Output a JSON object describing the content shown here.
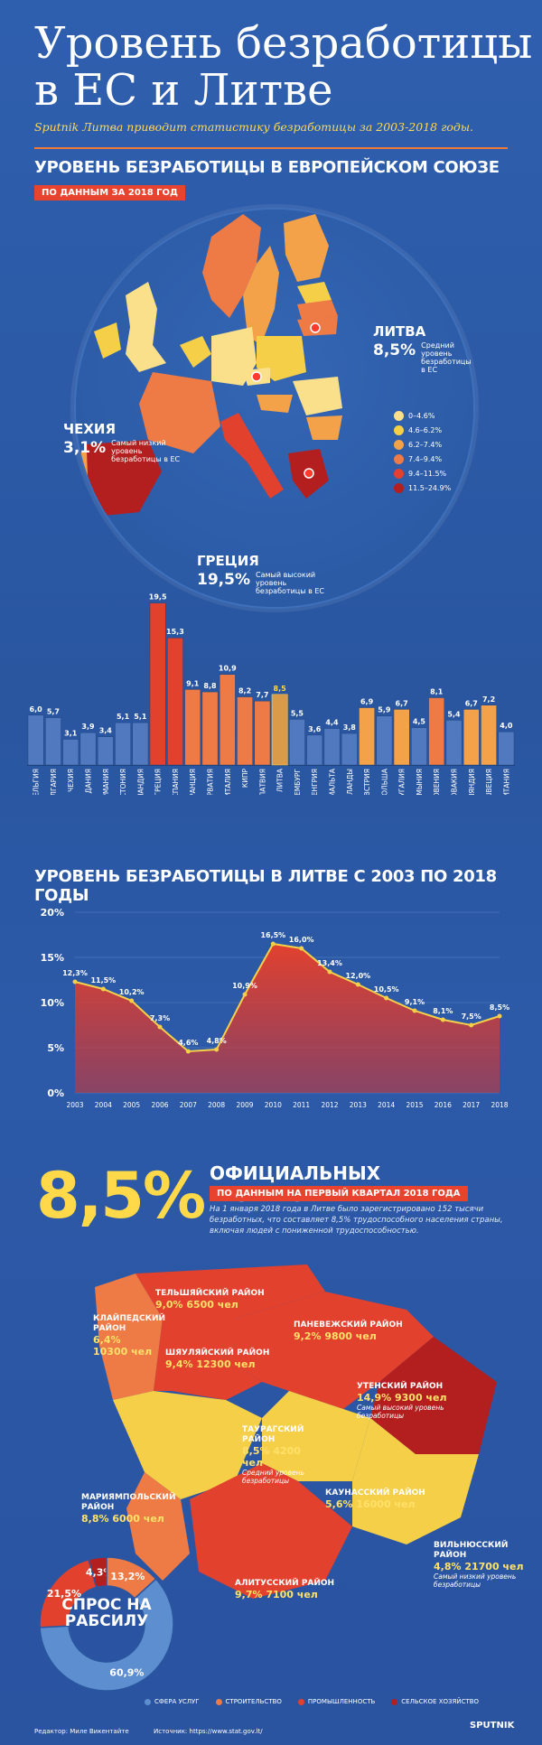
{
  "header": {
    "title": "Уровень безработицы\nв ЕС и Литве",
    "subtitle": "Sputnik Литва приводит статистику безработицы за 2003-2018 годы."
  },
  "eu_section": {
    "heading": "УРОВЕНЬ БЕЗРАБОТИЦЫ В ЕВРОПЕЙСКОМ СОЮЗЕ",
    "tag": "ПО ДАННЫМ ЗА 2018 ГОД",
    "callouts": {
      "lithuania": {
        "name": "ЛИТВА",
        "value": "8,5%",
        "note": "Средний уровень безработицы в ЕС"
      },
      "czechia": {
        "name": "ЧЕХИЯ",
        "value": "3,1%",
        "note": "Самый низкий уровень безработицы в ЕС"
      },
      "greece": {
        "name": "ГРЕЦИЯ",
        "value": "19,5%",
        "note": "Самый высокий уровень безработицы в ЕС"
      }
    },
    "legend": [
      {
        "label": "0–4.6%",
        "color": "#fbe08c"
      },
      {
        "label": "4.6–6.2%",
        "color": "#f6cf48"
      },
      {
        "label": "6.2–7.4%",
        "color": "#f3a24a"
      },
      {
        "label": "7.4–9.4%",
        "color": "#ee7a45"
      },
      {
        "label": "9.4–11.5%",
        "color": "#e2412e"
      },
      {
        "label": "11.5–24.9%",
        "color": "#b31f1f"
      }
    ]
  },
  "chart_data": [
    {
      "type": "bar",
      "categories": [
        "БЕЛЬГИЯ",
        "БОЛГАРИЯ",
        "ЧЕХИЯ",
        "ДАНИЯ",
        "ГЕРМАНИЯ",
        "ЭСТОНИЯ",
        "ИРЛАНДИЯ",
        "ГРЕЦИЯ",
        "ИСПАНИЯ",
        "ФРАНЦИЯ",
        "ХОРВАТИЯ",
        "ИТАЛИЯ",
        "КИПР",
        "ЛАТВИЯ",
        "ЛИТВА",
        "ЛЮКСЕМБУРГ",
        "ВЕНГРИЯ",
        "МАЛЬТА",
        "НИДЕРЛАНДЫ",
        "АВСТРИЯ",
        "ПОЛЬША",
        "ПОРТУГАЛИЯ",
        "РУМЫНИЯ",
        "СЛОВЕНИЯ",
        "СЛОВАКИЯ",
        "ФИНЛЯНДИЯ",
        "ШВЕЦИЯ",
        "ВЕЛИКОБРИТАНИЯ"
      ],
      "values": [
        6.0,
        5.7,
        3.1,
        3.9,
        3.4,
        5.1,
        5.1,
        19.5,
        15.3,
        9.1,
        8.8,
        10.9,
        8.2,
        7.7,
        8.5,
        5.5,
        3.6,
        4.4,
        3.8,
        6.9,
        5.9,
        6.7,
        4.5,
        8.1,
        5.4,
        6.7,
        7.2,
        4.0
      ],
      "value_labels": [
        "6,0",
        "5,7",
        "3,1",
        "3,9",
        "3,4",
        "5,1",
        "5,1",
        "19,5",
        "15,3",
        "9,1",
        "8,8",
        "10,9",
        "8,2",
        "7,7",
        "8,5",
        "5,5",
        "3,6",
        "4,4",
        "3,8",
        "6,9",
        "5,9",
        "6,7",
        "4,5",
        "8,1",
        "5,4",
        "6,7",
        "7,2",
        "4,0"
      ],
      "highlight": "ЛИТВА"
    },
    {
      "type": "area",
      "title": "УРОВЕНЬ БЕЗРАБОТИЦЫ В ЛИТВЕ С 2003 ПО 2018 ГОДЫ",
      "x": [
        "2003",
        "2004",
        "2005",
        "2006",
        "2007",
        "2008",
        "2009",
        "2010",
        "2011",
        "2012",
        "2013",
        "2014",
        "2015",
        "2016",
        "2017",
        "2018"
      ],
      "values": [
        12.3,
        11.5,
        10.2,
        7.3,
        4.6,
        4.8,
        10.9,
        16.5,
        16.0,
        13.4,
        12.0,
        10.5,
        9.1,
        8.1,
        7.5,
        8.5
      ],
      "value_labels": [
        "12,3%",
        "11,5%",
        "10,2%",
        "7,3%",
        "4,6%",
        "4,8%",
        "10,9%",
        "16,5%",
        "16,0%",
        "13,4%",
        "12,0%",
        "10,5%",
        "9,1%",
        "8,1%",
        "7,5%",
        "8,5%"
      ],
      "yticks": [
        "0%",
        "5%",
        "10%",
        "15%",
        "20%"
      ],
      "ylim": [
        0,
        20
      ]
    },
    {
      "type": "pie",
      "title": "СПРОС НА РАБСИЛУ",
      "series": [
        {
          "name": "СФЕРА УСЛУГ",
          "value": 60.9,
          "label": "60,9%",
          "color": "#5d8fd0"
        },
        {
          "name": "СТРОИТЕЛЬСТВО",
          "value": 13.2,
          "label": "13,2%",
          "color": "#ee7a45"
        },
        {
          "name": "ПРОМЫШЛЕННОСТЬ",
          "value": 21.5,
          "label": "21,5%",
          "color": "#e2412e"
        },
        {
          "name": "СЕЛЬСКОЕ ХОЗЯЙСТВО",
          "value": 4.3,
          "label": "4,3%",
          "color": "#b31f1f"
        }
      ]
    }
  ],
  "official": {
    "big": "8,5%",
    "heading": "ОФИЦИАЛЬНЫХ БЕЗРАБОТНЫХ",
    "tag": "ПО ДАННЫМ НА ПЕРВЫЙ КВАРТАЛ 2018 ГОДА",
    "text": "На 1 января 2018 года в Литве было зарегистрировано 152 тысячи безработных, что составляет 8,5% трудоспособного населения страны, включая людей с пониженной трудоспособностью."
  },
  "regions": [
    {
      "name": "ТЕЛЬШЯЙСКИЙ РАЙОН",
      "value": "9,0% 6500 чел"
    },
    {
      "name": "КЛАЙПЕДСКИЙ РАЙОН",
      "value": "6,4% 10300 чел"
    },
    {
      "name": "ШЯУЛЯЙСКИЙ РАЙОН",
      "value": "9,4% 12300 чел"
    },
    {
      "name": "ПАНЕВЕЖСКИЙ РАЙОН",
      "value": "9,2% 9800 чел"
    },
    {
      "name": "УТЕНСКИЙ РАЙОН",
      "value": "14,9% 9300 чел",
      "note": "Самый высокий уровень безработицы"
    },
    {
      "name": "ТАУРАГСКИЙ РАЙОН",
      "value": "8,5% 4200 чел",
      "note": "Средний уровень безработицы"
    },
    {
      "name": "МАРИЯМПОЛЬСКИЙ РАЙОН",
      "value": "8,8% 6000 чел"
    },
    {
      "name": "КАУНАССКИЙ РАЙОН",
      "value": "5,6% 16000 чел"
    },
    {
      "name": "ВИЛЬНЮССКИЙ РАЙОН",
      "value": "4,8% 21700 чел",
      "note": "Самый низкий уровень безработицы"
    },
    {
      "name": "АЛИТУССКИЙ РАЙОН",
      "value": "9,7% 7100 чел"
    }
  ],
  "footer": {
    "editor": "Редактор: Миле Викентайте",
    "source": "Источник: https://www.stat.gov.lt/",
    "brand": "SPUTNIK"
  }
}
